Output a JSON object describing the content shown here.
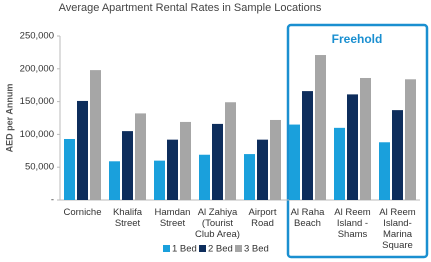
{
  "chart_data": {
    "type": "bar",
    "title": "Average Apartment Rental Rates in Sample Locations",
    "y_label": "AED per Annum",
    "categories": [
      [
        "Corniche"
      ],
      [
        "Khalifa",
        "Street"
      ],
      [
        "Hamdan",
        "Street"
      ],
      [
        "Al Zahiya",
        "(Tourist",
        "Club Area)"
      ],
      [
        "Airport",
        "Road"
      ],
      [
        "Al Raha",
        "Beach"
      ],
      [
        "Al Reem",
        "Island -",
        "Shams"
      ],
      [
        "Al Reem",
        "Island-",
        "Marina",
        "Square"
      ]
    ],
    "series": [
      {
        "name": "1 Bed",
        "color": "#1aa0dc",
        "values": [
          93000,
          59000,
          60000,
          69000,
          70000,
          115000,
          110000,
          88000
        ]
      },
      {
        "name": "2 Bed",
        "color": "#0d2d5c",
        "values": [
          151000,
          105000,
          92000,
          116000,
          92000,
          166000,
          161000,
          137000
        ]
      },
      {
        "name": "3 Bed",
        "color": "#a6a6a6",
        "values": [
          198000,
          132000,
          119000,
          149000,
          122000,
          221000,
          186000,
          184000
        ]
      }
    ],
    "ylim": [
      0,
      250000
    ],
    "yticks": [
      {
        "value": 0,
        "label": "-"
      },
      {
        "value": 50000,
        "label": "50,000"
      },
      {
        "value": 100000,
        "label": "100,000"
      },
      {
        "value": 150000,
        "label": "150,000"
      },
      {
        "value": 200000,
        "label": "200,000"
      },
      {
        "value": 250000,
        "label": "250,000"
      }
    ],
    "annotation": "Freehold",
    "legend": "bottom"
  }
}
